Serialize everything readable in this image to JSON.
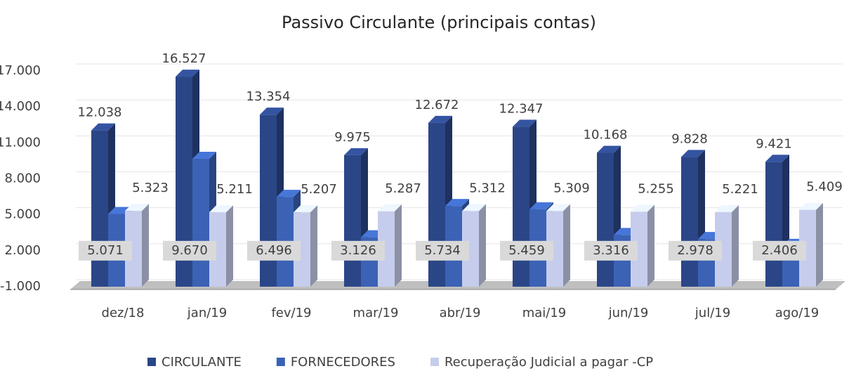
{
  "chart_data": {
    "type": "bar3d",
    "title": "Passivo Circulante (principais contas)",
    "categories": [
      "dez/18",
      "jan/19",
      "fev/19",
      "mar/19",
      "abr/19",
      "mai/19",
      "jun/19",
      "jul/19",
      "ago/19"
    ],
    "series": [
      {
        "name": "CIRCULANTE",
        "color": "#2b4687",
        "values": [
          12038,
          16527,
          13354,
          9975,
          12672,
          12347,
          10168,
          9828,
          9421
        ],
        "value_labels": [
          "12.038",
          "16.527",
          "13.354",
          "9.975",
          "12.672",
          "12.347",
          "10.168",
          "9.828",
          "9.421"
        ]
      },
      {
        "name": "FORNECEDORES",
        "color": "#3b62b5",
        "values": [
          5071,
          9670,
          6496,
          3126,
          5734,
          5459,
          3316,
          2978,
          2406
        ],
        "value_labels": [
          "5.071",
          "9.670",
          "6.496",
          "3.126",
          "5.734",
          "5.459",
          "3.316",
          "2.978",
          "2.406"
        ]
      },
      {
        "name": "Recuperação Judicial a pagar -CP",
        "color": "#c6cdec",
        "values": [
          5323,
          5211,
          5207,
          5287,
          5312,
          5309,
          5255,
          5221,
          5409
        ],
        "value_labels": [
          "5.323",
          "5.211",
          "5.207",
          "5.287",
          "5.312",
          "5.309",
          "5.255",
          "5.221",
          "5.409"
        ]
      }
    ],
    "ylim": [
      -1000,
      17000
    ],
    "yticks": [
      {
        "value": -1000,
        "label": "-1.000"
      },
      {
        "value": 2000,
        "label": "2.000"
      },
      {
        "value": 5000,
        "label": "5.000"
      },
      {
        "value": 8000,
        "label": "8.000"
      },
      {
        "value": 11000,
        "label": "11.000"
      },
      {
        "value": 14000,
        "label": "14.000"
      },
      {
        "value": 17000,
        "label": "17.000"
      }
    ],
    "grid": true,
    "legend": "bottom"
  }
}
